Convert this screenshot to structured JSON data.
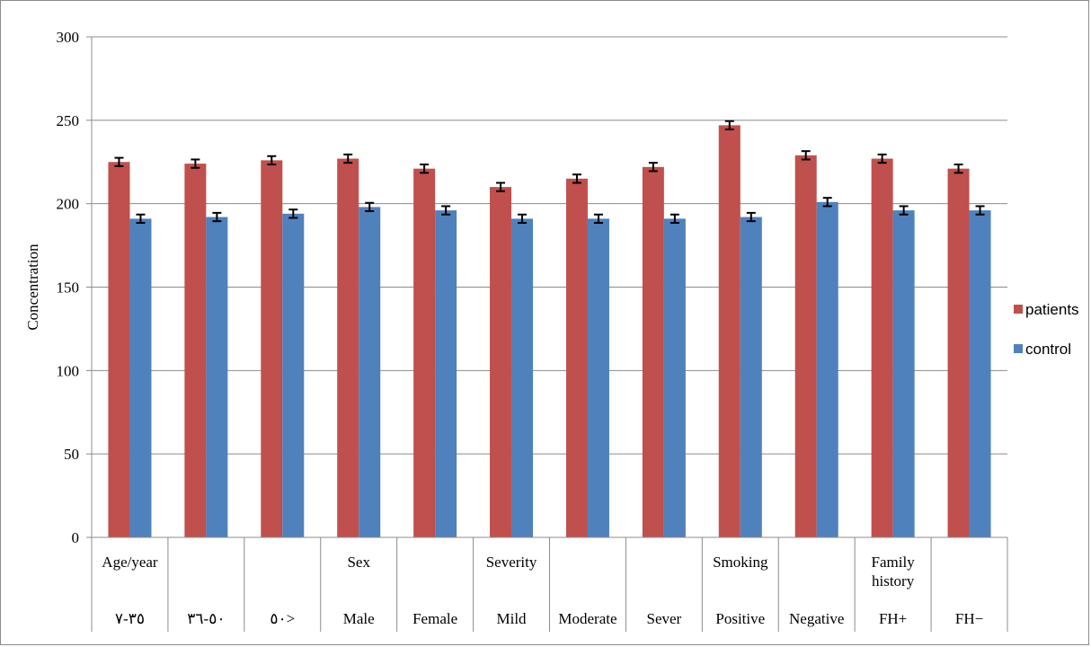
{
  "chart_data": {
    "type": "bar",
    "title": "",
    "xlabel": "",
    "ylabel": "Concentration",
    "ylim": [
      0,
      300
    ],
    "yticks": [
      0,
      50,
      100,
      150,
      200,
      250,
      300
    ],
    "grid": true,
    "legend_position": "right",
    "groups": [
      {
        "label": "Age/year",
        "span": 3
      },
      {
        "label": "Sex",
        "span": 2
      },
      {
        "label": "Severity",
        "span": 3
      },
      {
        "label": "Smoking",
        "span": 2
      },
      {
        "label": "Family history",
        "span": 2
      }
    ],
    "categories": [
      "٣٥-٧",
      "٥٠-٣٦",
      "٥٠>",
      "Male",
      "Female",
      "Mild",
      "Moderate",
      "Sever",
      "Positive",
      "Negative",
      "FH+",
      "FH−"
    ],
    "series": [
      {
        "name": "patients",
        "color": "#c0504d",
        "values": [
          225,
          224,
          226,
          227,
          221,
          210,
          215,
          222,
          247,
          229,
          227,
          221
        ],
        "errors": [
          2.5,
          2.5,
          2.5,
          2.5,
          2.5,
          2.5,
          2.5,
          2.5,
          2.5,
          2.5,
          2.5,
          2.5
        ]
      },
      {
        "name": "control",
        "color": "#4f81bd",
        "values": [
          191,
          192,
          194,
          198,
          196,
          191,
          191,
          191,
          192,
          201,
          196,
          196
        ],
        "errors": [
          2.5,
          2.5,
          2.5,
          2.5,
          2.5,
          2.5,
          2.5,
          2.5,
          2.5,
          2.5,
          2.5,
          2.5
        ]
      }
    ]
  }
}
